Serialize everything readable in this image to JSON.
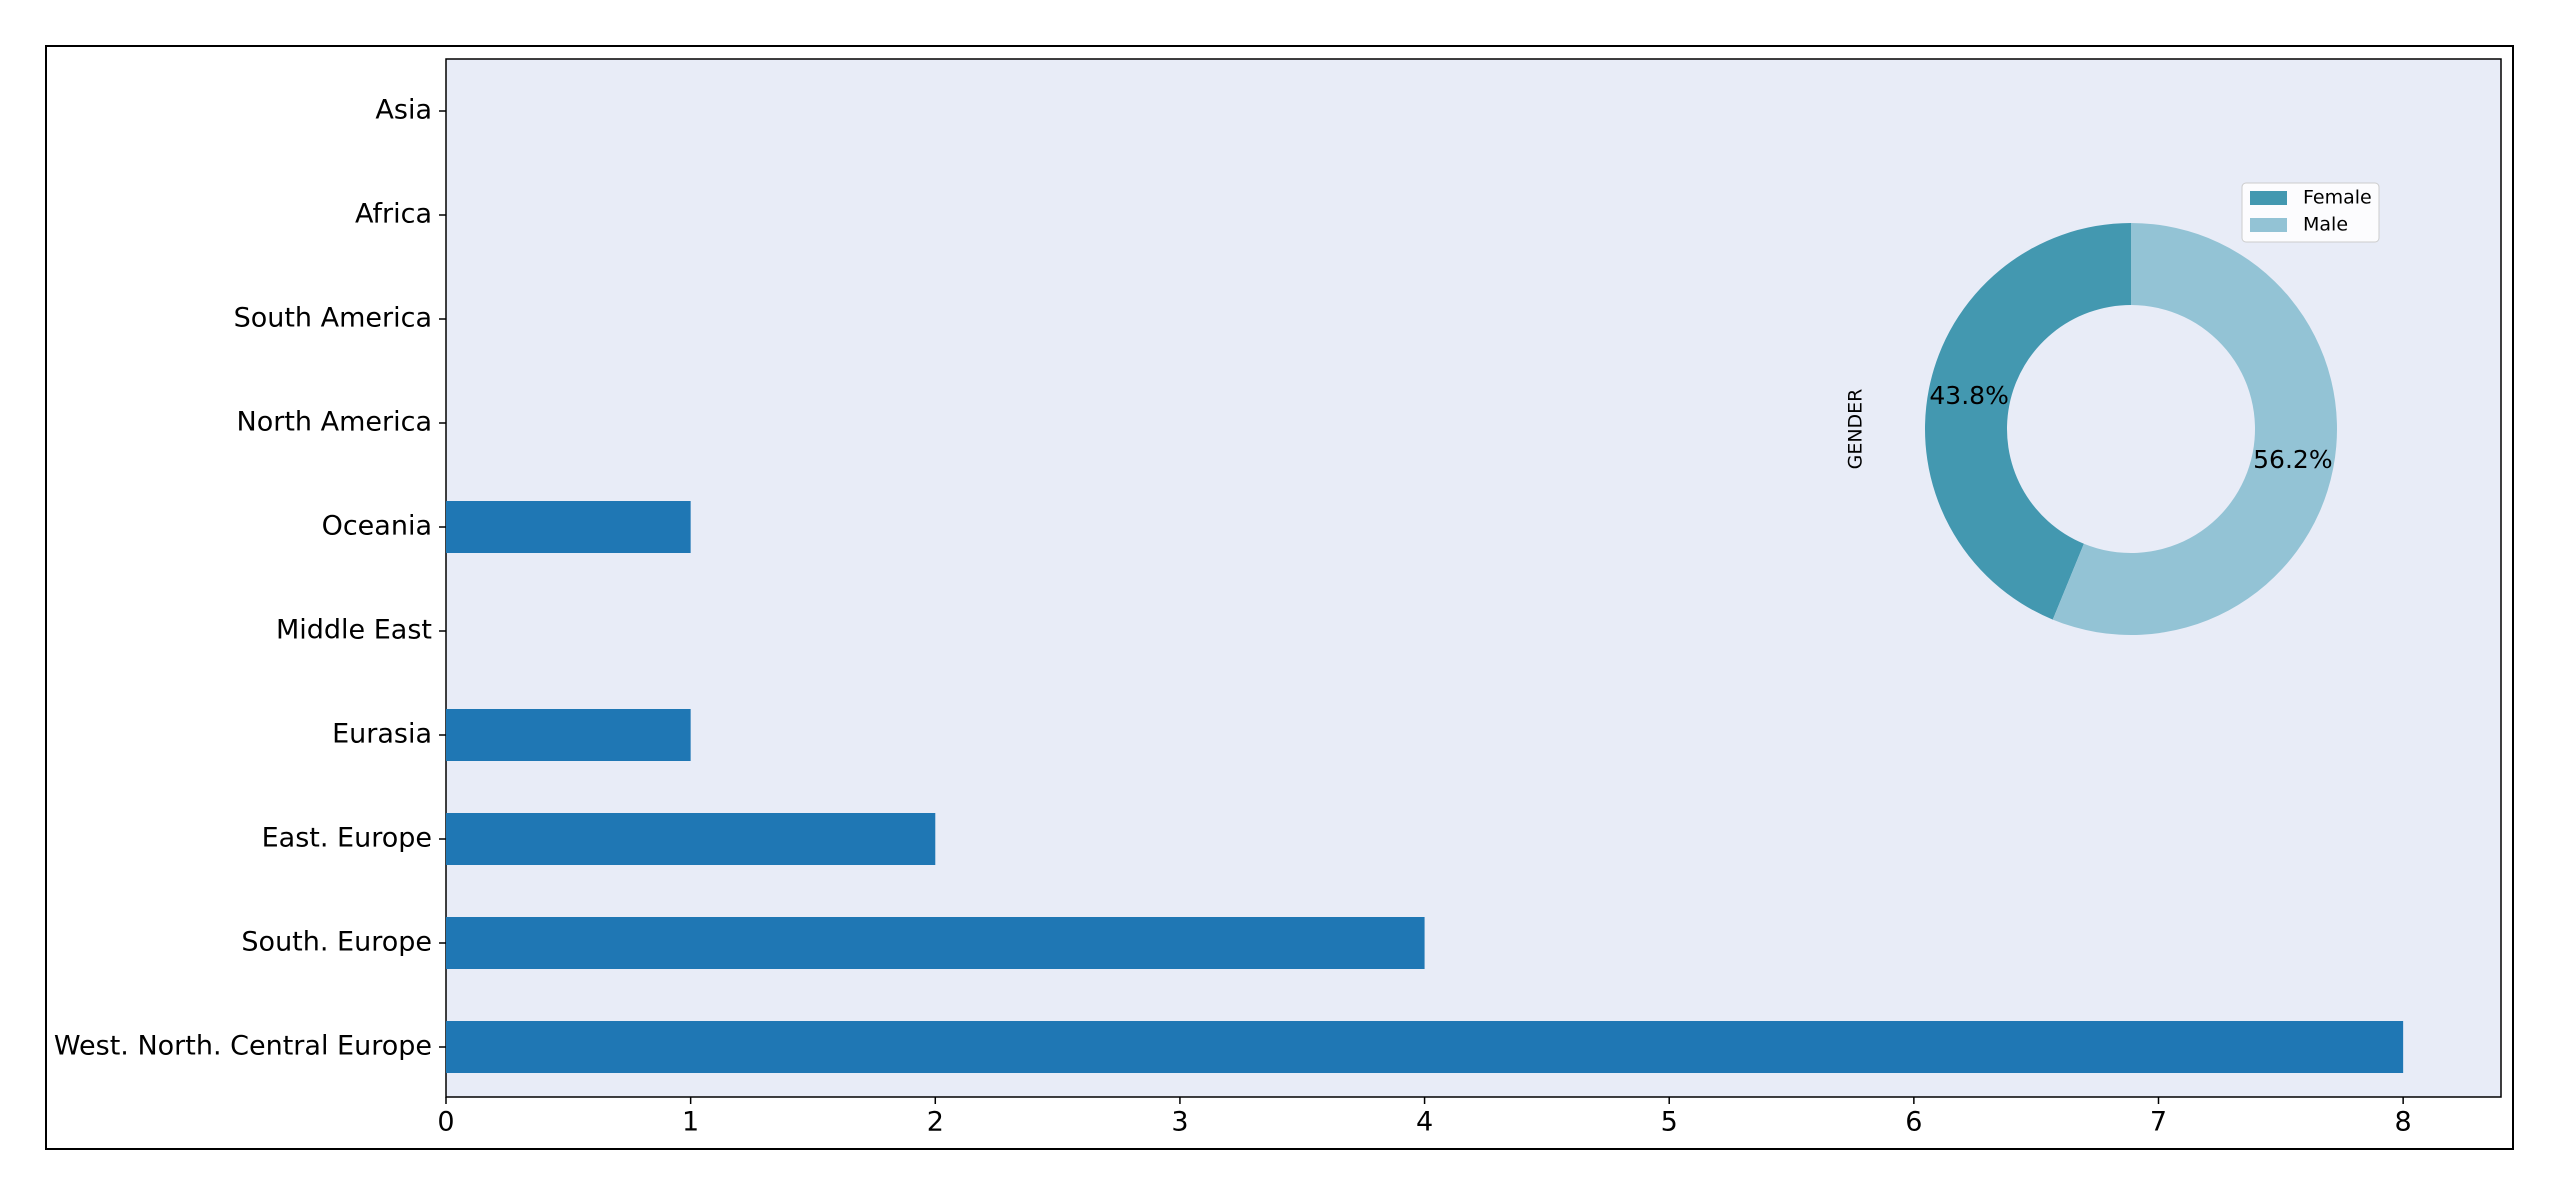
{
  "chart_data": [
    {
      "type": "barh",
      "categories": [
        "Asia",
        "Africa",
        "South America",
        "North America",
        "Oceania",
        "Middle East",
        "Eurasia",
        "East. Europe",
        "South. Europe",
        "West. North. Central Europe"
      ],
      "values": [
        0,
        0,
        0,
        0,
        1,
        0,
        1,
        2,
        4,
        8
      ],
      "color": "#1f77b4",
      "xlim": [
        0,
        8.4
      ],
      "xticks": [
        0,
        1,
        2,
        3,
        4,
        5,
        6,
        7,
        8
      ]
    },
    {
      "type": "donut",
      "ylabel": "GENDER",
      "categories": [
        "Female",
        "Male"
      ],
      "values": [
        43.8,
        56.2
      ],
      "value_labels": [
        "43.8%",
        "56.2%"
      ],
      "colors": [
        "#4398b0",
        "#93c3d5"
      ],
      "legend": "upper right"
    }
  ]
}
